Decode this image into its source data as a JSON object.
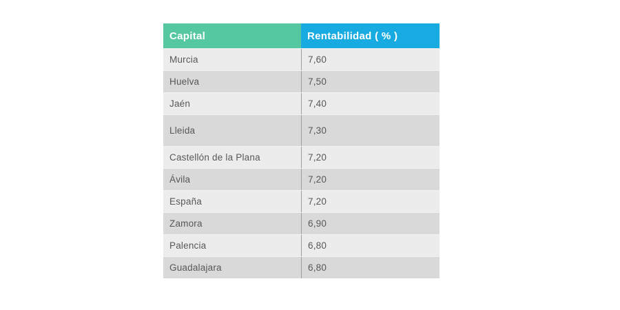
{
  "page": {
    "background": "#ffffff"
  },
  "table": {
    "header": {
      "capital_label": "Capital",
      "rentabilidad_label": "Rentabilidad ( % )",
      "capital_bg": "#55C8A2",
      "rentabilidad_bg": "#18ABE2",
      "header_text_color": "#FFFFFF"
    },
    "row_colors": {
      "odd": "#ECECEC",
      "even": "#D9D9D9",
      "text": "#57575B",
      "divider": "#9E9E9E"
    },
    "rows": [
      {
        "capital": "Murcia",
        "rentabilidad": "7,60"
      },
      {
        "capital": "Huelva",
        "rentabilidad": "7,50"
      },
      {
        "capital": "Jaén",
        "rentabilidad": "7,40"
      },
      {
        "capital": "Lleida",
        "rentabilidad": "7,30"
      },
      {
        "capital": "Castellón de la Plana",
        "rentabilidad": "7,20"
      },
      {
        "capital": "Ávila",
        "rentabilidad": "7,20"
      },
      {
        "capital": "España",
        "rentabilidad": "7,20"
      },
      {
        "capital": "Zamora",
        "rentabilidad": "6,90"
      },
      {
        "capital": "Palencia",
        "rentabilidad": "6,80"
      },
      {
        "capital": "Guadalajara",
        "rentabilidad": "6,80"
      }
    ]
  },
  "chart_data": {
    "type": "table",
    "title": "",
    "columns": [
      "Capital",
      "Rentabilidad ( % )"
    ],
    "rows": [
      [
        "Murcia",
        7.6
      ],
      [
        "Huelva",
        7.5
      ],
      [
        "Jaén",
        7.4
      ],
      [
        "Lleida",
        7.3
      ],
      [
        "Castellón de la Plana",
        7.2
      ],
      [
        "Ávila",
        7.2
      ],
      [
        "España",
        7.2
      ],
      [
        "Zamora",
        6.9
      ],
      [
        "Palencia",
        6.8
      ],
      [
        "Guadalajara",
        6.8
      ]
    ],
    "value_format": "comma-decimal",
    "notes": "Rentabilidad expressed in percent; rows sorted descending"
  }
}
